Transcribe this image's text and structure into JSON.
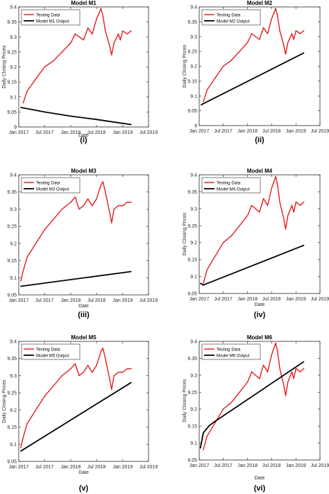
{
  "charts": [
    {
      "title": "Model M1",
      "caption": "(i)",
      "ylabel": "Daily Closing Prices",
      "xlabel": "Date",
      "yticks": [
        "9",
        "9.05",
        "9.1",
        "9.15",
        "9.2",
        "9.25",
        "9.3",
        "9.35",
        "9.4"
      ],
      "xticks": [
        "Jan 2017",
        "Jul 2017",
        "Jan 2018",
        "Jul 2018",
        "Jan 2019",
        "Jul 2019"
      ],
      "legend": [
        "Testing Data",
        "Model M1 Output"
      ]
    },
    {
      "title": "Model M2",
      "caption": "(ii)",
      "ylabel": "Daily Closing Prices",
      "xlabel": "",
      "yticks": [
        "9",
        "9.05",
        "9.1",
        "9.15",
        "9.2",
        "9.25",
        "9.3",
        "9.35",
        "9.4"
      ],
      "xticks": [
        "Jan 2017",
        "Jul 2017",
        "Jan 2018",
        "Jul 2018",
        "Jan 2019",
        "Jul 2019"
      ],
      "legend": [
        "Testing Data",
        "Model M2 Output"
      ]
    },
    {
      "title": "Model M3",
      "caption": "(iii)",
      "ylabel": "",
      "xlabel": "Date",
      "yticks": [
        "9.05",
        "9.1",
        "9.15",
        "9.2",
        "9.25",
        "9.3",
        "9.35",
        "9.4"
      ],
      "xticks": [
        "Jan 2017",
        "Jul 2017",
        "Jan 2018",
        "Jul 2018",
        "Jan 2019",
        "Jul 2019"
      ],
      "legend": [
        "Testing Data",
        "Model M3 Output"
      ]
    },
    {
      "title": "Model M4",
      "caption": "(iv)",
      "ylabel": "Daily Closing Prices",
      "xlabel": "Date",
      "yticks": [
        "9.05",
        "9.1",
        "9.15",
        "9.2",
        "9.25",
        "9.3",
        "9.35",
        "9.4"
      ],
      "xticks": [
        "Jan 2017",
        "Jul 2017",
        "Jan 2018",
        "Jul 2018",
        "Jan 2019",
        "Jul 2019"
      ],
      "legend": [
        "Testing Data",
        "Model M4 Output"
      ]
    },
    {
      "title": "Model M5",
      "caption": "(v)",
      "ylabel": "Daily Closing Prices",
      "xlabel": "Date",
      "yticks": [
        "9.05",
        "9.1",
        "9.15",
        "9.2",
        "9.25",
        "9.3",
        "9.35",
        "9.4"
      ],
      "xticks": [
        "Jan 2017",
        "Jul 2017",
        "Jan 2018",
        "Jul 2018",
        "Jan 2019",
        "Jul 2019"
      ],
      "legend": [
        "Testing Data",
        "Model M5 Output"
      ]
    },
    {
      "title": "Model M6",
      "caption": "(vi)",
      "ylabel": "Daily Closing Prices",
      "xlabel": "Date",
      "yticks": [
        "9.05",
        "9.1",
        "9.15",
        "9.2",
        "9.25",
        "9.3",
        "9.35",
        "9.4"
      ],
      "xticks": [
        "Jan 2017",
        "Jul 2017",
        "Jan 2018",
        "Jul 2018",
        "Jan 2019",
        "Jul 2019"
      ],
      "legend": [
        "Testing Data",
        "Model M6 Output"
      ]
    }
  ],
  "colors": {
    "testing": "#e41a1c",
    "model": "#000000"
  },
  "chart_data": [
    {
      "type": "line",
      "title": "Model M1",
      "xlabel": "Date",
      "ylabel": "Daily Closing Prices",
      "xlim": [
        "2017-01-01",
        "2019-07-01"
      ],
      "ylim": [
        9.0,
        9.4
      ],
      "legend_position": "top-left",
      "series": [
        {
          "name": "Testing Data",
          "x": [
            "2017-02-01",
            "2017-03-01",
            "2017-05-01",
            "2017-07-01",
            "2017-09-01",
            "2017-11-01",
            "2018-01-01",
            "2018-02-01",
            "2018-04-01",
            "2018-05-01",
            "2018-06-01",
            "2018-07-01",
            "2018-08-01",
            "2018-08-15",
            "2018-09-01",
            "2018-10-01",
            "2018-10-15",
            "2018-11-01",
            "2018-12-01",
            "2018-12-15",
            "2019-01-01",
            "2019-02-01",
            "2019-03-01"
          ],
          "y": [
            9.08,
            9.12,
            9.16,
            9.2,
            9.22,
            9.25,
            9.28,
            9.31,
            9.29,
            9.33,
            9.31,
            9.36,
            9.395,
            9.37,
            9.32,
            9.27,
            9.24,
            9.28,
            9.31,
            9.29,
            9.32,
            9.31,
            9.32
          ]
        },
        {
          "name": "Model M1 Output",
          "x": [
            "2017-01-15",
            "2017-07-01",
            "2018-01-01",
            "2018-07-01",
            "2019-01-01",
            "2019-03-01"
          ],
          "y": [
            9.065,
            9.05,
            9.036,
            9.025,
            9.012,
            9.008
          ]
        }
      ]
    },
    {
      "type": "line",
      "title": "Model M2",
      "xlabel": "",
      "ylabel": "Daily Closing Prices",
      "xlim": [
        "2017-01-01",
        "2019-07-01"
      ],
      "ylim": [
        9.0,
        9.4
      ],
      "legend_position": "top-left",
      "series": [
        {
          "name": "Testing Data",
          "x": [
            "2017-02-01",
            "2017-03-01",
            "2017-05-01",
            "2017-07-01",
            "2017-09-01",
            "2017-11-01",
            "2018-01-01",
            "2018-02-01",
            "2018-04-01",
            "2018-05-01",
            "2018-06-01",
            "2018-07-01",
            "2018-08-01",
            "2018-08-15",
            "2018-09-01",
            "2018-10-01",
            "2018-10-15",
            "2018-11-01",
            "2018-12-01",
            "2018-12-15",
            "2019-01-01",
            "2019-02-01",
            "2019-03-01"
          ],
          "y": [
            9.08,
            9.12,
            9.16,
            9.2,
            9.22,
            9.25,
            9.28,
            9.31,
            9.29,
            9.33,
            9.31,
            9.36,
            9.395,
            9.37,
            9.32,
            9.27,
            9.24,
            9.28,
            9.31,
            9.29,
            9.32,
            9.31,
            9.32
          ]
        },
        {
          "name": "Model M2 Output",
          "x": [
            "2017-01-15",
            "2019-03-01"
          ],
          "y": [
            9.07,
            9.245
          ]
        }
      ]
    },
    {
      "type": "line",
      "title": "Model M3",
      "xlabel": "Date",
      "ylabel": "",
      "xlim": [
        "2017-01-01",
        "2019-07-01"
      ],
      "ylim": [
        9.05,
        9.4
      ],
      "legend_position": "top-left",
      "series": [
        {
          "name": "Testing Data",
          "x": [
            "2017-01-15",
            "2017-02-01",
            "2017-03-01",
            "2017-05-01",
            "2017-07-01",
            "2017-09-01",
            "2017-11-01",
            "2018-01-01",
            "2018-02-01",
            "2018-03-01",
            "2018-04-01",
            "2018-05-01",
            "2018-06-01",
            "2018-07-01",
            "2018-08-01",
            "2018-08-15",
            "2018-09-01",
            "2018-10-01",
            "2018-10-15",
            "2018-11-01",
            "2018-12-01",
            "2019-01-01",
            "2019-02-01",
            "2019-03-01"
          ],
          "y": [
            9.09,
            9.12,
            9.16,
            9.2,
            9.24,
            9.27,
            9.3,
            9.32,
            9.335,
            9.3,
            9.31,
            9.33,
            9.31,
            9.33,
            9.37,
            9.38,
            9.35,
            9.29,
            9.26,
            9.3,
            9.31,
            9.31,
            9.32,
            9.32
          ]
        },
        {
          "name": "Model M3 Output",
          "x": [
            "2017-01-15",
            "2019-03-01"
          ],
          "y": [
            9.075,
            9.118
          ]
        }
      ]
    },
    {
      "type": "line",
      "title": "Model M4",
      "xlabel": "Date",
      "ylabel": "Daily Closing Prices",
      "xlim": [
        "2017-01-01",
        "2019-07-01"
      ],
      "ylim": [
        9.05,
        9.4
      ],
      "legend_position": "top-left",
      "series": [
        {
          "name": "Testing Data",
          "x": [
            "2017-02-01",
            "2017-03-01",
            "2017-05-01",
            "2017-07-01",
            "2017-09-01",
            "2017-11-01",
            "2018-01-01",
            "2018-02-01",
            "2018-04-01",
            "2018-05-01",
            "2018-06-01",
            "2018-07-01",
            "2018-08-01",
            "2018-08-15",
            "2018-09-01",
            "2018-10-01",
            "2018-10-15",
            "2018-11-01",
            "2018-12-01",
            "2018-12-15",
            "2019-01-01",
            "2019-02-01",
            "2019-03-01"
          ],
          "y": [
            9.08,
            9.12,
            9.16,
            9.2,
            9.22,
            9.25,
            9.28,
            9.31,
            9.29,
            9.33,
            9.31,
            9.36,
            9.395,
            9.37,
            9.32,
            9.27,
            9.24,
            9.28,
            9.31,
            9.29,
            9.32,
            9.31,
            9.32
          ]
        },
        {
          "name": "Model M4 Output",
          "x": [
            "2017-01-10",
            "2017-02-01",
            "2019-03-01"
          ],
          "y": [
            9.08,
            9.075,
            9.192
          ]
        }
      ]
    },
    {
      "type": "line",
      "title": "Model M5",
      "xlabel": "Date",
      "ylabel": "Daily Closing Prices",
      "xlim": [
        "2017-01-01",
        "2019-07-01"
      ],
      "ylim": [
        9.05,
        9.4
      ],
      "legend_position": "top-left",
      "series": [
        {
          "name": "Testing Data",
          "x": [
            "2017-01-15",
            "2017-02-01",
            "2017-03-01",
            "2017-05-01",
            "2017-07-01",
            "2017-09-01",
            "2017-11-01",
            "2018-01-01",
            "2018-02-01",
            "2018-03-01",
            "2018-04-01",
            "2018-05-01",
            "2018-06-01",
            "2018-07-01",
            "2018-08-01",
            "2018-08-15",
            "2018-09-01",
            "2018-10-01",
            "2018-10-15",
            "2018-11-01",
            "2018-12-01",
            "2019-01-01",
            "2019-02-01",
            "2019-03-01"
          ],
          "y": [
            9.09,
            9.12,
            9.16,
            9.2,
            9.24,
            9.27,
            9.3,
            9.32,
            9.335,
            9.3,
            9.31,
            9.33,
            9.31,
            9.33,
            9.37,
            9.38,
            9.35,
            9.29,
            9.26,
            9.3,
            9.31,
            9.31,
            9.32,
            9.32
          ]
        },
        {
          "name": "Model M5 Output",
          "x": [
            "2017-01-15",
            "2019-03-01"
          ],
          "y": [
            9.08,
            9.28
          ]
        }
      ]
    },
    {
      "type": "line",
      "title": "Model M6",
      "xlabel": "Date",
      "ylabel": "Daily Closing Prices",
      "xlim": [
        "2017-01-01",
        "2019-07-01"
      ],
      "ylim": [
        9.05,
        9.4
      ],
      "legend_position": "top-left",
      "series": [
        {
          "name": "Testing Data",
          "x": [
            "2017-02-01",
            "2017-03-01",
            "2017-05-01",
            "2017-07-01",
            "2017-09-01",
            "2017-11-01",
            "2018-01-01",
            "2018-02-01",
            "2018-04-01",
            "2018-05-01",
            "2018-06-01",
            "2018-07-01",
            "2018-08-01",
            "2018-08-15",
            "2018-09-01",
            "2018-10-01",
            "2018-10-15",
            "2018-11-01",
            "2018-12-01",
            "2018-12-15",
            "2019-01-01",
            "2019-02-01",
            "2019-03-01"
          ],
          "y": [
            9.08,
            9.12,
            9.16,
            9.2,
            9.22,
            9.25,
            9.28,
            9.31,
            9.29,
            9.33,
            9.31,
            9.36,
            9.395,
            9.37,
            9.32,
            9.27,
            9.24,
            9.28,
            9.31,
            9.29,
            9.32,
            9.31,
            9.32
          ]
        },
        {
          "name": "Model M6 Output",
          "x": [
            "2017-01-10",
            "2017-02-01",
            "2017-03-15",
            "2017-04-15",
            "2019-03-01"
          ],
          "y": [
            9.085,
            9.13,
            9.15,
            9.16,
            9.34
          ]
        }
      ]
    }
  ]
}
